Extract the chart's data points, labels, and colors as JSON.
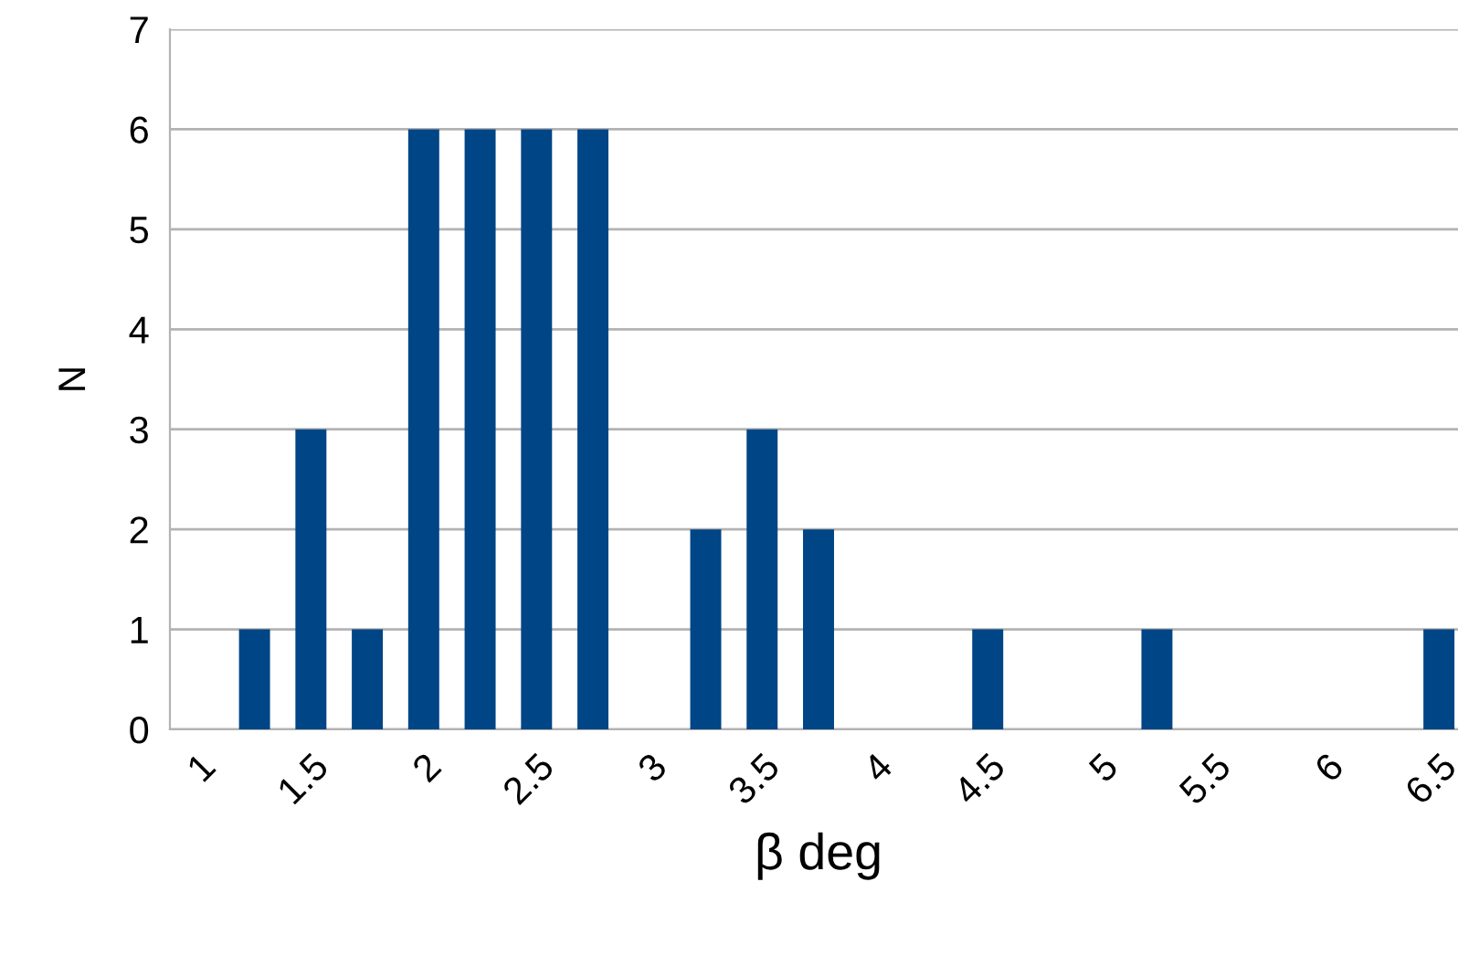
{
  "chart_data": {
    "type": "bar",
    "xlabel": "β deg",
    "ylabel": "N",
    "categories": [
      "1",
      null,
      "1.5",
      null,
      "2",
      null,
      "2.5",
      null,
      "3",
      null,
      "3.5",
      null,
      "4",
      null,
      "4.5",
      null,
      "5",
      null,
      "5.5",
      null,
      "6",
      null,
      "6.5"
    ],
    "values": [
      0,
      1,
      3,
      1,
      6,
      6,
      6,
      6,
      0,
      2,
      3,
      2,
      0,
      0,
      1,
      0,
      0,
      1,
      0,
      0,
      0,
      0,
      1
    ],
    "color": "#004586",
    "ylim": [
      0,
      7
    ],
    "yticks": [
      0,
      1,
      2,
      3,
      4,
      5,
      6,
      7
    ],
    "grid": "y"
  }
}
